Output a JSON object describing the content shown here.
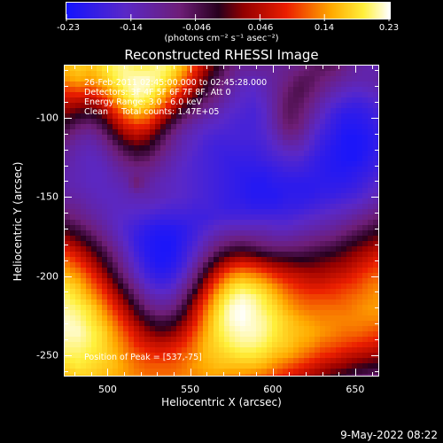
{
  "colorbar": {
    "ticks": [
      "-0.23",
      "-0.14",
      "-0.046",
      "0.046",
      "0.14",
      "0.23"
    ],
    "units": "(photons cm⁻² s⁻¹ asec⁻²)",
    "min": -0.23,
    "max": 0.23
  },
  "title": "Reconstructed RHESSI Image",
  "annotations": {
    "line1": "26-Feb-2011 02:45:00.000 to 02:45:28.000",
    "line2": "Detectors: 3F 4F 5F 6F 7F 8F, Att 0",
    "line3": "Energy Range: 3.0 - 6.0 keV",
    "line4": "Clean     Total counts: 1.47E+05",
    "peak": "Position of Peak = [537,-75]"
  },
  "date_stamp": "9-May-2022 08:22",
  "chart_data": {
    "type": "heatmap",
    "title": "Reconstructed RHESSI Image",
    "xlabel": "Heliocentric X (arcsec)",
    "ylabel": "Heliocentric Y (arcsec)",
    "xlim": [
      474,
      664
    ],
    "ylim": [
      -263,
      -67
    ],
    "xticks": [
      "500",
      "550",
      "600",
      "650"
    ],
    "yticks": [
      "-100",
      "-150",
      "-200",
      "-250"
    ],
    "xtick_values": [
      500,
      550,
      600,
      650
    ],
    "ytick_values": [
      -100,
      -150,
      -200,
      -250
    ],
    "colormap": "black-blue-purple-red-yellow-white",
    "colorscale_range": [
      -0.23,
      0.23
    ],
    "grid": false,
    "peak_position": [
      537,
      -75
    ],
    "nx": 28,
    "ny": 28,
    "values": [
      [
        0.16,
        0.17,
        0.16,
        0.18,
        0.2,
        0.21,
        0.2,
        0.2,
        0.21,
        0.19,
        0.15,
        0.09,
        0.03,
        -0.02,
        -0.07,
        -0.1,
        -0.1,
        -0.1,
        -0.1,
        -0.09,
        -0.08,
        -0.06,
        -0.05,
        -0.06,
        -0.09,
        -0.11,
        -0.12,
        -0.12
      ],
      [
        0.14,
        0.15,
        0.14,
        0.16,
        0.19,
        0.21,
        0.22,
        0.22,
        0.2,
        0.17,
        0.12,
        0.06,
        0.0,
        -0.05,
        -0.09,
        -0.12,
        -0.13,
        -0.12,
        -0.1,
        -0.08,
        -0.05,
        -0.05,
        -0.07,
        -0.09,
        -0.11,
        -0.12,
        -0.12,
        -0.11
      ],
      [
        0.09,
        0.1,
        0.09,
        0.12,
        0.16,
        0.2,
        0.22,
        0.21,
        0.18,
        0.13,
        0.08,
        0.03,
        -0.03,
        -0.07,
        -0.11,
        -0.14,
        -0.15,
        -0.13,
        -0.1,
        -0.06,
        -0.04,
        -0.06,
        -0.09,
        -0.12,
        -0.14,
        -0.15,
        -0.14,
        -0.13
      ],
      [
        0.05,
        0.04,
        0.03,
        0.06,
        0.12,
        0.17,
        0.2,
        0.18,
        0.14,
        0.08,
        0.02,
        -0.03,
        -0.07,
        -0.1,
        -0.13,
        -0.15,
        -0.16,
        -0.14,
        -0.1,
        -0.05,
        -0.05,
        -0.08,
        -0.12,
        -0.15,
        -0.17,
        -0.18,
        -0.17,
        -0.15
      ],
      [
        0.01,
        -0.01,
        -0.02,
        0.01,
        0.07,
        0.12,
        0.15,
        0.13,
        0.08,
        0.02,
        -0.04,
        -0.08,
        -0.11,
        -0.13,
        -0.15,
        -0.16,
        -0.17,
        -0.15,
        -0.1,
        -0.05,
        -0.06,
        -0.1,
        -0.14,
        -0.18,
        -0.2,
        -0.2,
        -0.19,
        -0.17
      ],
      [
        -0.03,
        -0.06,
        -0.07,
        -0.04,
        0.02,
        0.07,
        0.09,
        0.08,
        0.02,
        -0.04,
        -0.09,
        -0.12,
        -0.14,
        -0.15,
        -0.16,
        -0.17,
        -0.17,
        -0.15,
        -0.11,
        -0.06,
        -0.07,
        -0.12,
        -0.16,
        -0.19,
        -0.21,
        -0.21,
        -0.2,
        -0.18
      ],
      [
        -0.07,
        -0.1,
        -0.11,
        -0.08,
        -0.03,
        0.02,
        0.04,
        0.02,
        -0.03,
        -0.08,
        -0.12,
        -0.14,
        -0.16,
        -0.17,
        -0.17,
        -0.17,
        -0.17,
        -0.16,
        -0.13,
        -0.09,
        -0.1,
        -0.14,
        -0.18,
        -0.2,
        -0.22,
        -0.22,
        -0.21,
        -0.19
      ],
      [
        -0.1,
        -0.12,
        -0.13,
        -0.11,
        -0.07,
        -0.03,
        -0.01,
        -0.02,
        -0.06,
        -0.1,
        -0.13,
        -0.15,
        -0.17,
        -0.18,
        -0.18,
        -0.18,
        -0.18,
        -0.17,
        -0.15,
        -0.13,
        -0.13,
        -0.16,
        -0.19,
        -0.21,
        -0.22,
        -0.22,
        -0.21,
        -0.19
      ],
      [
        -0.11,
        -0.13,
        -0.14,
        -0.13,
        -0.1,
        -0.07,
        -0.05,
        -0.06,
        -0.09,
        -0.12,
        -0.14,
        -0.16,
        -0.17,
        -0.18,
        -0.19,
        -0.19,
        -0.19,
        -0.18,
        -0.17,
        -0.16,
        -0.16,
        -0.18,
        -0.2,
        -0.21,
        -0.22,
        -0.22,
        -0.2,
        -0.18
      ],
      [
        -0.12,
        -0.13,
        -0.14,
        -0.14,
        -0.12,
        -0.1,
        -0.09,
        -0.09,
        -0.11,
        -0.13,
        -0.15,
        -0.16,
        -0.17,
        -0.18,
        -0.19,
        -0.2,
        -0.2,
        -0.2,
        -0.19,
        -0.18,
        -0.18,
        -0.19,
        -0.2,
        -0.21,
        -0.21,
        -0.2,
        -0.19,
        -0.17
      ],
      [
        -0.12,
        -0.13,
        -0.14,
        -0.14,
        -0.13,
        -0.12,
        -0.06,
        -0.11,
        -0.13,
        -0.14,
        -0.15,
        -0.16,
        -0.17,
        -0.18,
        -0.19,
        -0.2,
        -0.21,
        -0.21,
        -0.2,
        -0.2,
        -0.2,
        -0.2,
        -0.2,
        -0.2,
        -0.2,
        -0.19,
        -0.17,
        -0.15
      ],
      [
        -0.11,
        -0.12,
        -0.13,
        -0.14,
        -0.14,
        -0.13,
        -0.12,
        -0.12,
        -0.13,
        -0.14,
        -0.15,
        -0.16,
        -0.17,
        -0.18,
        -0.19,
        -0.2,
        -0.21,
        -0.21,
        -0.21,
        -0.2,
        -0.2,
        -0.2,
        -0.19,
        -0.19,
        -0.18,
        -0.17,
        -0.15,
        -0.13
      ],
      [
        -0.09,
        -0.1,
        -0.12,
        -0.13,
        -0.14,
        -0.14,
        -0.14,
        -0.14,
        -0.15,
        -0.16,
        -0.16,
        -0.17,
        -0.17,
        -0.18,
        -0.19,
        -0.19,
        -0.2,
        -0.2,
        -0.2,
        -0.19,
        -0.19,
        -0.18,
        -0.17,
        -0.16,
        -0.15,
        -0.14,
        -0.12,
        -0.1
      ],
      [
        -0.06,
        -0.08,
        -0.1,
        -0.12,
        -0.14,
        -0.15,
        -0.16,
        -0.17,
        -0.18,
        -0.18,
        -0.18,
        -0.18,
        -0.18,
        -0.17,
        -0.17,
        -0.17,
        -0.17,
        -0.17,
        -0.17,
        -0.17,
        -0.16,
        -0.15,
        -0.14,
        -0.13,
        -0.12,
        -0.1,
        -0.08,
        -0.06
      ],
      [
        -0.02,
        -0.04,
        -0.07,
        -0.1,
        -0.13,
        -0.16,
        -0.18,
        -0.2,
        -0.21,
        -0.21,
        -0.2,
        -0.18,
        -0.16,
        -0.14,
        -0.13,
        -0.13,
        -0.13,
        -0.13,
        -0.14,
        -0.14,
        -0.13,
        -0.12,
        -0.11,
        -0.1,
        -0.08,
        -0.06,
        -0.04,
        -0.02
      ],
      [
        0.03,
        0.0,
        -0.03,
        -0.07,
        -0.11,
        -0.15,
        -0.19,
        -0.21,
        -0.22,
        -0.22,
        -0.2,
        -0.17,
        -0.13,
        -0.1,
        -0.08,
        -0.07,
        -0.08,
        -0.09,
        -0.1,
        -0.1,
        -0.09,
        -0.08,
        -0.07,
        -0.06,
        -0.04,
        -0.02,
        0.0,
        0.02
      ],
      [
        0.08,
        0.05,
        0.01,
        -0.03,
        -0.08,
        -0.13,
        -0.18,
        -0.21,
        -0.22,
        -0.22,
        -0.19,
        -0.15,
        -0.1,
        -0.05,
        -0.02,
        -0.01,
        -0.02,
        -0.04,
        -0.05,
        -0.05,
        -0.05,
        -0.04,
        -0.03,
        -0.02,
        0.0,
        0.02,
        0.04,
        0.06
      ],
      [
        0.12,
        0.09,
        0.05,
        0.0,
        -0.05,
        -0.11,
        -0.16,
        -0.2,
        -0.22,
        -0.21,
        -0.18,
        -0.12,
        -0.05,
        0.01,
        0.05,
        0.07,
        0.06,
        0.04,
        0.02,
        0.01,
        0.0,
        0.0,
        0.01,
        0.02,
        0.03,
        0.05,
        0.07,
        0.09
      ],
      [
        0.15,
        0.13,
        0.09,
        0.04,
        -0.02,
        -0.08,
        -0.14,
        -0.18,
        -0.2,
        -0.19,
        -0.15,
        -0.08,
        0.0,
        0.07,
        0.12,
        0.14,
        0.13,
        0.11,
        0.08,
        0.06,
        0.05,
        0.04,
        0.04,
        0.05,
        0.06,
        0.08,
        0.1,
        0.11
      ],
      [
        0.18,
        0.16,
        0.12,
        0.08,
        0.02,
        -0.04,
        -0.1,
        -0.15,
        -0.17,
        -0.16,
        -0.11,
        -0.04,
        0.05,
        0.12,
        0.17,
        0.19,
        0.18,
        0.16,
        0.13,
        0.1,
        0.08,
        0.07,
        0.07,
        0.08,
        0.09,
        0.1,
        0.12,
        0.13
      ],
      [
        0.2,
        0.18,
        0.15,
        0.11,
        0.06,
        0.0,
        -0.06,
        -0.11,
        -0.13,
        -0.12,
        -0.07,
        0.01,
        0.09,
        0.16,
        0.2,
        0.22,
        0.21,
        0.19,
        0.16,
        0.13,
        0.11,
        0.1,
        0.1,
        0.1,
        0.11,
        0.12,
        0.13,
        0.14
      ],
      [
        0.21,
        0.2,
        0.18,
        0.14,
        0.09,
        0.04,
        -0.02,
        -0.07,
        -0.09,
        -0.08,
        -0.03,
        0.05,
        0.12,
        0.18,
        0.22,
        0.23,
        0.22,
        0.2,
        0.18,
        0.15,
        0.13,
        0.12,
        0.12,
        0.12,
        0.12,
        0.13,
        0.14,
        0.14
      ],
      [
        0.22,
        0.21,
        0.19,
        0.16,
        0.12,
        0.07,
        0.02,
        -0.02,
        -0.04,
        -0.03,
        0.01,
        0.07,
        0.14,
        0.19,
        0.22,
        0.23,
        0.22,
        0.21,
        0.19,
        0.17,
        0.15,
        0.14,
        0.13,
        0.13,
        0.13,
        0.13,
        0.13,
        0.13
      ],
      [
        0.22,
        0.22,
        0.2,
        0.18,
        0.14,
        0.1,
        0.06,
        0.02,
        0.0,
        0.01,
        0.05,
        0.1,
        0.15,
        0.19,
        0.21,
        0.22,
        0.22,
        0.21,
        0.19,
        0.17,
        0.16,
        0.15,
        0.14,
        0.13,
        0.12,
        0.12,
        0.11,
        0.1
      ],
      [
        0.21,
        0.21,
        0.2,
        0.18,
        0.15,
        0.12,
        0.08,
        0.06,
        0.05,
        0.06,
        0.08,
        0.12,
        0.16,
        0.18,
        0.2,
        0.21,
        0.21,
        0.2,
        0.18,
        0.17,
        0.15,
        0.14,
        0.12,
        0.11,
        0.1,
        0.09,
        0.08,
        0.07
      ],
      [
        0.2,
        0.2,
        0.19,
        0.18,
        0.16,
        0.13,
        0.11,
        0.09,
        0.08,
        0.09,
        0.11,
        0.13,
        0.16,
        0.17,
        0.18,
        0.19,
        0.19,
        0.18,
        0.16,
        0.15,
        0.13,
        0.11,
        0.09,
        0.08,
        0.06,
        0.05,
        0.04,
        0.03
      ],
      [
        0.18,
        0.19,
        0.18,
        0.17,
        0.16,
        0.14,
        0.12,
        0.11,
        0.11,
        0.11,
        0.12,
        0.14,
        0.15,
        0.16,
        0.16,
        0.16,
        0.16,
        0.15,
        0.13,
        0.11,
        0.09,
        0.07,
        0.05,
        0.03,
        0.02,
        0.0,
        -0.01,
        -0.02
      ],
      [
        0.16,
        0.17,
        0.17,
        0.16,
        0.15,
        0.14,
        0.13,
        0.12,
        0.12,
        0.12,
        0.13,
        0.13,
        0.14,
        0.14,
        0.13,
        0.13,
        0.12,
        0.11,
        0.09,
        0.07,
        0.05,
        0.03,
        0.01,
        -0.01,
        -0.03,
        -0.05,
        -0.06,
        -0.07
      ]
    ]
  }
}
